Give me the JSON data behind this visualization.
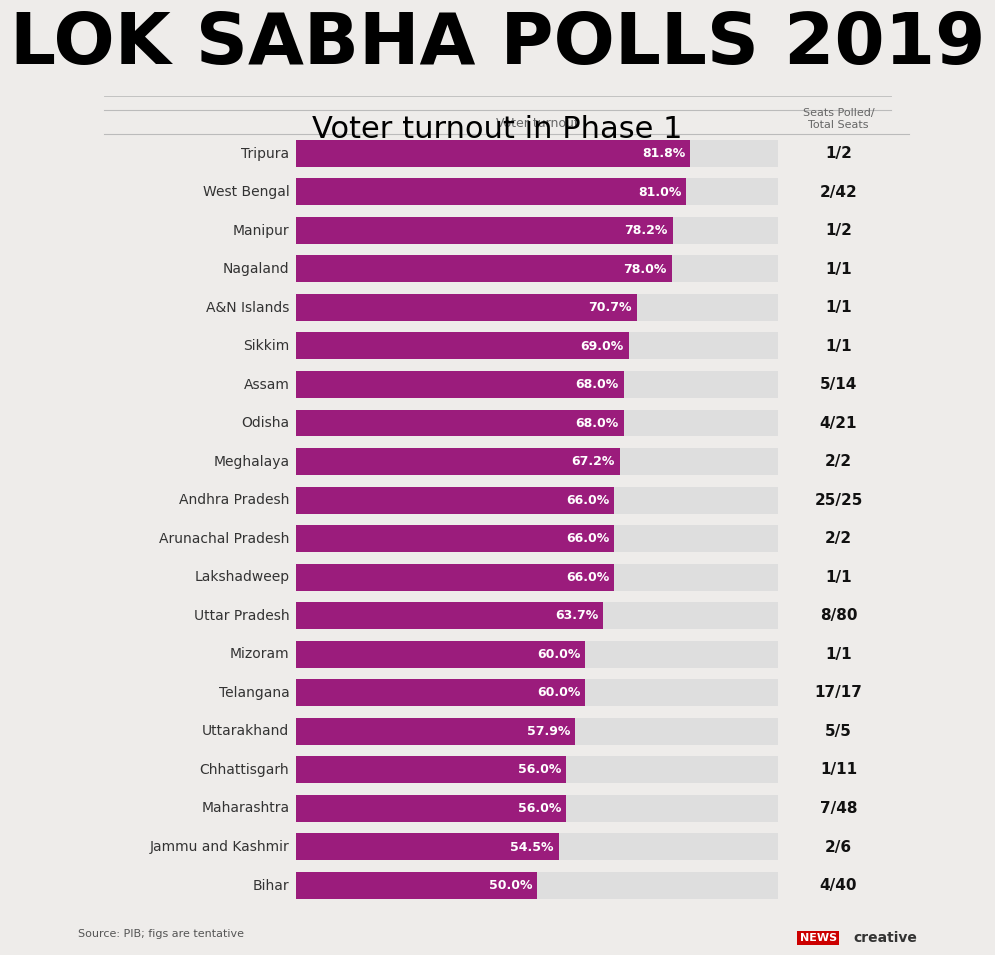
{
  "title_main": "LOK SABHA POLLS 2019",
  "title_sub": "Voter turnout in Phase 1",
  "col_header_left": "Voter turnout",
  "col_header_right": "Seats Polled/\nTotal Seats",
  "source": "Source: PIB; figs are tentative",
  "states": [
    "Tripura",
    "West Bengal",
    "Manipur",
    "Nagaland",
    "A&N Islands",
    "Sikkim",
    "Assam",
    "Odisha",
    "Meghalaya",
    "Andhra Pradesh",
    "Arunachal Pradesh",
    "Lakshadweep",
    "Uttar Pradesh",
    "Mizoram",
    "Telangana",
    "Uttarakhand",
    "Chhattisgarh",
    "Maharashtra",
    "Jammu and Kashmir",
    "Bihar"
  ],
  "values": [
    81.8,
    81.0,
    78.2,
    78.0,
    70.7,
    69.0,
    68.0,
    68.0,
    67.2,
    66.0,
    66.0,
    66.0,
    63.7,
    60.0,
    60.0,
    57.9,
    56.0,
    56.0,
    54.5,
    50.0
  ],
  "labels": [
    "81.8%",
    "81.0%",
    "78.2%",
    "78.0%",
    "70.7%",
    "69.0%",
    "68.0%",
    "68.0%",
    "67.2%",
    "66.0%",
    "66.0%",
    "66.0%",
    "63.7%",
    "60.0%",
    "60.0%",
    "57.9%",
    "56.0%",
    "56.0%",
    "54.5%",
    "50.0%"
  ],
  "seats": [
    "1/2",
    "2/42",
    "1/2",
    "1/1",
    "1/1",
    "1/1",
    "5/14",
    "4/21",
    "2/2",
    "25/25",
    "2/2",
    "1/1",
    "8/80",
    "1/1",
    "17/17",
    "5/5",
    "1/11",
    "7/48",
    "2/6",
    "4/40"
  ],
  "bar_color": "#9B1C7C",
  "bar_bg_color": "#DEDEDE",
  "bg_color": "#EEECEA",
  "text_color": "#000000",
  "state_label_color": "#333333",
  "seats_color": "#111111",
  "xlim": [
    0,
    100
  ],
  "title_fontsize": 52,
  "subtitle_fontsize": 22,
  "bar_label_fontsize": 9,
  "state_fontsize": 10,
  "seats_fontsize": 11
}
